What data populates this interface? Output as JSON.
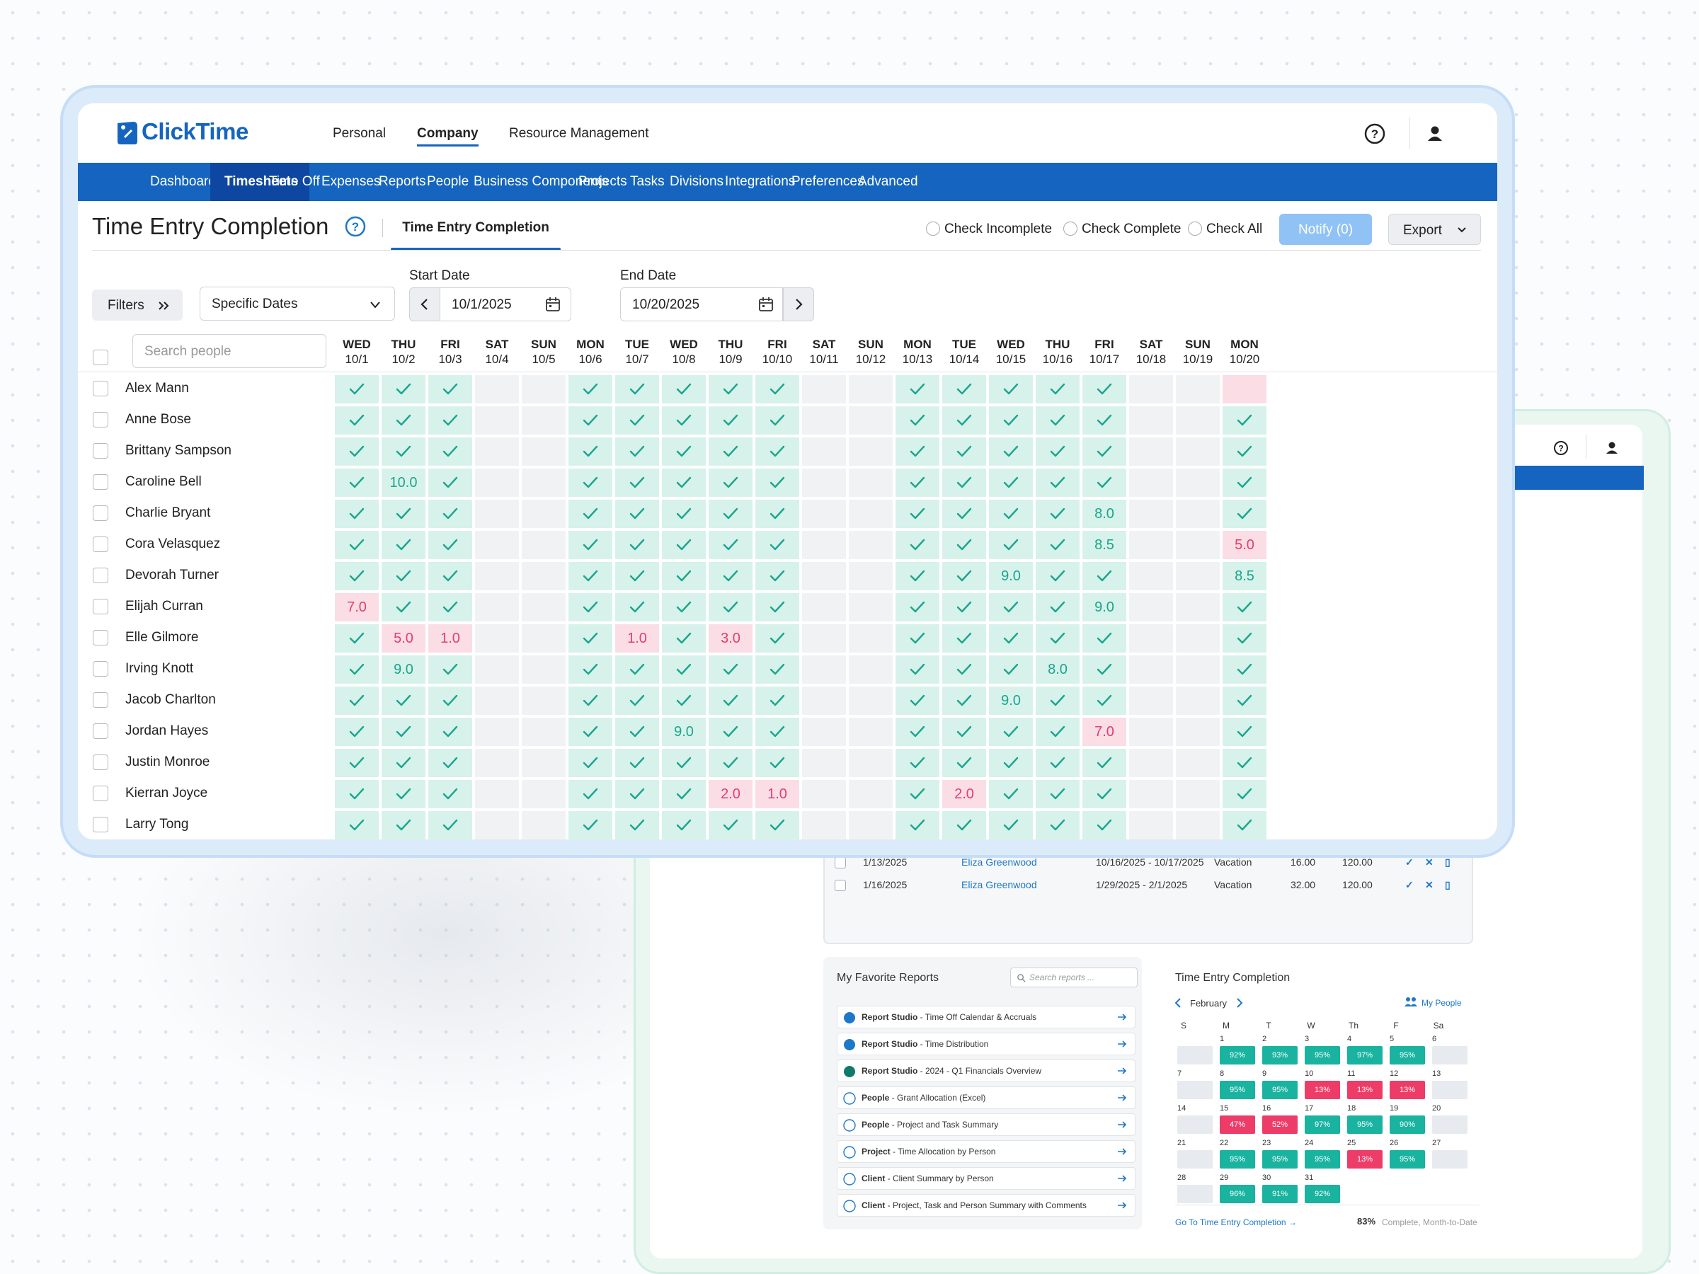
{
  "colors": {
    "brand": "#1565c0",
    "nav_active": "#0d47a1",
    "complete": "#d7f2ea",
    "complete_text": "#1aa58f",
    "incomplete": "#fbdde5",
    "incomplete_text": "#e0406b",
    "weekend": "#f1f2f4"
  },
  "app": {
    "logo_text": "ClickTime"
  },
  "top_nav": [
    "Personal",
    "Company",
    "Resource Management"
  ],
  "top_nav_active": "Company",
  "main_nav": [
    "Dashboard",
    "Timesheets",
    "Time Off",
    "Expenses",
    "Reports",
    "People",
    "Business Components",
    "Projects",
    "Tasks",
    "Divisions",
    "Integrations",
    "Preferences",
    "Advanced"
  ],
  "main_nav_active": "Timesheets",
  "page": {
    "title": "Time Entry Completion",
    "subtab": "Time Entry Completion",
    "radios": [
      "Check Incomplete",
      "Check Complete",
      "Check All"
    ],
    "notify_label": "Notify (0)",
    "export_label": "Export"
  },
  "filters": {
    "filters_label": "Filters",
    "date_mode": "Specific Dates",
    "start_label": "Start Date",
    "start_value": "10/1/2025",
    "end_label": "End Date",
    "end_value": "10/20/2025",
    "search_placeholder": "Search people"
  },
  "columns": [
    {
      "dow": "WED",
      "date": "10/1"
    },
    {
      "dow": "THU",
      "date": "10/2"
    },
    {
      "dow": "FRI",
      "date": "10/3"
    },
    {
      "dow": "SAT",
      "date": "10/4"
    },
    {
      "dow": "SUN",
      "date": "10/5"
    },
    {
      "dow": "MON",
      "date": "10/6"
    },
    {
      "dow": "TUE",
      "date": "10/7"
    },
    {
      "dow": "WED",
      "date": "10/8"
    },
    {
      "dow": "THU",
      "date": "10/9"
    },
    {
      "dow": "FRI",
      "date": "10/10"
    },
    {
      "dow": "SAT",
      "date": "10/11"
    },
    {
      "dow": "SUN",
      "date": "10/12"
    },
    {
      "dow": "MON",
      "date": "10/13"
    },
    {
      "dow": "TUE",
      "date": "10/14"
    },
    {
      "dow": "WED",
      "date": "10/15"
    },
    {
      "dow": "THU",
      "date": "10/16"
    },
    {
      "dow": "FRI",
      "date": "10/17"
    },
    {
      "dow": "SAT",
      "date": "10/18"
    },
    {
      "dow": "SUN",
      "date": "10/19"
    },
    {
      "dow": "MON",
      "date": "10/20"
    }
  ],
  "rows": [
    {
      "name": "Alex Mann",
      "cells": [
        "c",
        "c",
        "c",
        "e",
        "e",
        "c",
        "c",
        "c",
        "c",
        "c",
        "e",
        "e",
        "c",
        "c",
        "c",
        "c",
        "c",
        "e",
        "e",
        "p:"
      ]
    },
    {
      "name": "Anne Bose",
      "cells": [
        "c",
        "c",
        "c",
        "e",
        "e",
        "c",
        "c",
        "c",
        "c",
        "c",
        "e",
        "e",
        "c",
        "c",
        "c",
        "c",
        "c",
        "e",
        "e",
        "c"
      ]
    },
    {
      "name": "Brittany Sampson",
      "cells": [
        "c",
        "c",
        "c",
        "e",
        "e",
        "c",
        "c",
        "c",
        "c",
        "c",
        "e",
        "e",
        "c",
        "c",
        "c",
        "c",
        "c",
        "e",
        "e",
        "c"
      ]
    },
    {
      "name": "Caroline Bell",
      "cells": [
        "c",
        "h:10.0",
        "c",
        "e",
        "e",
        "c",
        "c",
        "c",
        "c",
        "c",
        "e",
        "e",
        "c",
        "c",
        "c",
        "c",
        "c",
        "e",
        "e",
        "c"
      ]
    },
    {
      "name": "Charlie Bryant",
      "cells": [
        "c",
        "c",
        "c",
        "e",
        "e",
        "c",
        "c",
        "c",
        "c",
        "c",
        "e",
        "e",
        "c",
        "c",
        "c",
        "c",
        "h:8.0",
        "e",
        "e",
        "c"
      ]
    },
    {
      "name": "Cora Velasquez",
      "cells": [
        "c",
        "c",
        "c",
        "e",
        "e",
        "c",
        "c",
        "c",
        "c",
        "c",
        "e",
        "e",
        "c",
        "c",
        "c",
        "c",
        "h:8.5",
        "e",
        "e",
        "p:5.0"
      ]
    },
    {
      "name": "Devorah Turner",
      "cells": [
        "c",
        "c",
        "c",
        "e",
        "e",
        "c",
        "c",
        "c",
        "c",
        "c",
        "e",
        "e",
        "c",
        "c",
        "h:9.0",
        "c",
        "c",
        "e",
        "e",
        "h:8.5"
      ]
    },
    {
      "name": "Elijah Curran",
      "cells": [
        "p:7.0",
        "c",
        "c",
        "e",
        "e",
        "c",
        "c",
        "c",
        "c",
        "c",
        "e",
        "e",
        "c",
        "c",
        "c",
        "c",
        "h:9.0",
        "e",
        "e",
        "c"
      ]
    },
    {
      "name": "Elle Gilmore",
      "cells": [
        "c",
        "p:5.0",
        "p:1.0",
        "e",
        "e",
        "c",
        "p:1.0",
        "c",
        "p:3.0",
        "c",
        "e",
        "e",
        "c",
        "c",
        "c",
        "c",
        "c",
        "e",
        "e",
        "c"
      ]
    },
    {
      "name": "Irving Knott",
      "cells": [
        "c",
        "h:9.0",
        "c",
        "e",
        "e",
        "c",
        "c",
        "c",
        "c",
        "c",
        "e",
        "e",
        "c",
        "c",
        "c",
        "h:8.0",
        "c",
        "e",
        "e",
        "c"
      ]
    },
    {
      "name": "Jacob Charlton",
      "cells": [
        "c",
        "c",
        "c",
        "e",
        "e",
        "c",
        "c",
        "c",
        "c",
        "c",
        "e",
        "e",
        "c",
        "c",
        "h:9.0",
        "c",
        "c",
        "e",
        "e",
        "c"
      ]
    },
    {
      "name": "Jordan Hayes",
      "cells": [
        "c",
        "c",
        "c",
        "e",
        "e",
        "c",
        "c",
        "h:9.0",
        "c",
        "c",
        "e",
        "e",
        "c",
        "c",
        "c",
        "c",
        "p:7.0",
        "e",
        "e",
        "c"
      ]
    },
    {
      "name": "Justin Monroe",
      "cells": [
        "c",
        "c",
        "c",
        "e",
        "e",
        "c",
        "c",
        "c",
        "c",
        "c",
        "e",
        "e",
        "c",
        "c",
        "c",
        "c",
        "c",
        "e",
        "e",
        "c"
      ]
    },
    {
      "name": "Kierran Joyce",
      "cells": [
        "c",
        "c",
        "c",
        "e",
        "e",
        "c",
        "c",
        "c",
        "p:2.0",
        "p:1.0",
        "e",
        "e",
        "c",
        "p:2.0",
        "c",
        "c",
        "c",
        "e",
        "e",
        "c"
      ]
    },
    {
      "name": "Larry Tong",
      "cells": [
        "c",
        "c",
        "c",
        "e",
        "e",
        "c",
        "c",
        "c",
        "c",
        "c",
        "e",
        "e",
        "c",
        "c",
        "c",
        "c",
        "c",
        "e",
        "e",
        "c"
      ]
    }
  ],
  "back": {
    "requests": [
      {
        "date": "1/13/2025",
        "person": "Eliza Greenwood",
        "range": "10/16/2025 - 10/17/2025",
        "type": "Vacation",
        "hours": "16.00",
        "balance": "120.00"
      },
      {
        "date": "1/16/2025",
        "person": "Eliza Greenwood",
        "range": "1/29/2025 - 2/1/2025",
        "type": "Vacation",
        "hours": "32.00",
        "balance": "120.00"
      }
    ],
    "favorites_title": "My Favorite Reports",
    "favorites_search_placeholder": "Search reports ...",
    "favorites": [
      {
        "bold": "Report Studio",
        "rest": " - Time Off Calendar & Accruals",
        "icon": "report-studio-icon"
      },
      {
        "bold": "Report Studio",
        "rest": " - Time Distribution",
        "icon": "report-studio-icon"
      },
      {
        "bold": "Report Studio",
        "rest": " - 2024 - Q1 Financials Overview",
        "icon": "spreadsheet-icon"
      },
      {
        "bold": "People",
        "rest": " - Grant Allocation (Excel)",
        "icon": "person-icon"
      },
      {
        "bold": "People",
        "rest": " - Project and Task Summary",
        "icon": "person-icon"
      },
      {
        "bold": "Project",
        "rest": " - Time Allocation by Person",
        "icon": "project-icon"
      },
      {
        "bold": "Client",
        "rest": " - Client Summary by Person",
        "icon": "handshake-icon"
      },
      {
        "bold": "Client",
        "rest": " - Project, Task and Person Summary with Comments",
        "icon": "handshake-icon"
      }
    ],
    "calendar": {
      "title": "Time Entry Completion",
      "month": "February",
      "my_people": "My People",
      "dow": [
        "S",
        "M",
        "T",
        "W",
        "Th",
        "F",
        "Sa"
      ],
      "weeks": [
        [
          {
            "d": "",
            "v": ""
          },
          {
            "d": "1",
            "v": "92%"
          },
          {
            "d": "2",
            "v": "93%"
          },
          {
            "d": "3",
            "v": "95%"
          },
          {
            "d": "4",
            "v": "97%"
          },
          {
            "d": "5",
            "v": "95%"
          },
          {
            "d": "6",
            "v": ""
          }
        ],
        [
          {
            "d": "7",
            "v": ""
          },
          {
            "d": "8",
            "v": "95%"
          },
          {
            "d": "9",
            "v": "95%"
          },
          {
            "d": "10",
            "v": "13%"
          },
          {
            "d": "11",
            "v": "13%"
          },
          {
            "d": "12",
            "v": "13%"
          },
          {
            "d": "13",
            "v": ""
          }
        ],
        [
          {
            "d": "14",
            "v": ""
          },
          {
            "d": "15",
            "v": "47%"
          },
          {
            "d": "16",
            "v": "52%"
          },
          {
            "d": "17",
            "v": "97%"
          },
          {
            "d": "18",
            "v": "95%"
          },
          {
            "d": "19",
            "v": "90%"
          },
          {
            "d": "20",
            "v": ""
          }
        ],
        [
          {
            "d": "21",
            "v": ""
          },
          {
            "d": "22",
            "v": "95%"
          },
          {
            "d": "23",
            "v": "95%"
          },
          {
            "d": "24",
            "v": "95%"
          },
          {
            "d": "25",
            "v": "13%"
          },
          {
            "d": "26",
            "v": "95%"
          },
          {
            "d": "27",
            "v": ""
          }
        ],
        [
          {
            "d": "28",
            "v": ""
          },
          {
            "d": "29",
            "v": "96%"
          },
          {
            "d": "30",
            "v": "91%"
          },
          {
            "d": "31",
            "v": "92%"
          },
          {
            "d": "",
            "v": "-"
          },
          {
            "d": "",
            "v": "-"
          },
          {
            "d": "",
            "v": "-"
          }
        ]
      ],
      "goto": "Go To Time Entry Completion",
      "pct": "83%",
      "pct_label": "Complete, Month-to-Date"
    }
  }
}
